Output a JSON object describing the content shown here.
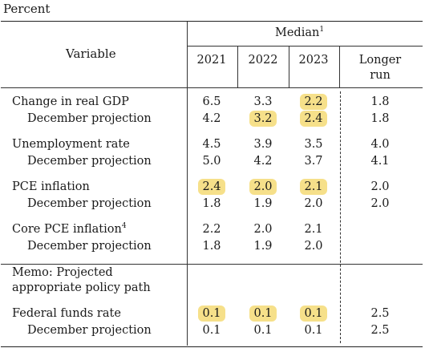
{
  "unit_label": "Percent",
  "header": {
    "variable": "Variable",
    "median": "Median",
    "median_note": "1",
    "columns": [
      "2021",
      "2022",
      "2023"
    ],
    "longer_run_line1": "Longer",
    "longer_run_line2": "run"
  },
  "rows": [
    {
      "label": "Change in real GDP",
      "values": [
        "6.5",
        "3.3",
        "2.2"
      ],
      "longer": "1.8",
      "highlight": [
        false,
        false,
        true
      ]
    },
    {
      "label": "December projection",
      "values": [
        "4.2",
        "3.2",
        "2.4"
      ],
      "longer": "1.8",
      "highlight": [
        false,
        true,
        true
      ]
    },
    {
      "label": "Unemployment rate",
      "values": [
        "4.5",
        "3.9",
        "3.5"
      ],
      "longer": "4.0",
      "highlight": [
        false,
        false,
        false
      ]
    },
    {
      "label": "December projection",
      "values": [
        "5.0",
        "4.2",
        "3.7"
      ],
      "longer": "4.1",
      "highlight": [
        false,
        false,
        false
      ]
    },
    {
      "label": "PCE inflation",
      "values": [
        "2.4",
        "2.0",
        "2.1"
      ],
      "longer": "2.0",
      "highlight": [
        true,
        true,
        true
      ]
    },
    {
      "label": "December projection",
      "values": [
        "1.8",
        "1.9",
        "2.0"
      ],
      "longer": "2.0",
      "highlight": [
        false,
        false,
        false
      ]
    },
    {
      "label": "Core PCE inflation",
      "note": "4",
      "values": [
        "2.2",
        "2.0",
        "2.1"
      ],
      "longer": "",
      "highlight": [
        false,
        false,
        false
      ]
    },
    {
      "label": "December projection",
      "values": [
        "1.8",
        "1.9",
        "2.0"
      ],
      "longer": "",
      "highlight": [
        false,
        false,
        false
      ]
    }
  ],
  "memo": {
    "line1": "Memo: Projected",
    "line2": "appropriate policy path"
  },
  "memo_rows": [
    {
      "label": "Federal funds rate",
      "values": [
        "0.1",
        "0.1",
        "0.1"
      ],
      "longer": "2.5",
      "highlight": [
        true,
        true,
        true
      ]
    },
    {
      "label": "December projection",
      "values": [
        "0.1",
        "0.1",
        "0.1"
      ],
      "longer": "2.5",
      "highlight": [
        false,
        false,
        false
      ]
    }
  ],
  "colors": {
    "highlight": "#f6e08a",
    "rule": "#222222"
  }
}
